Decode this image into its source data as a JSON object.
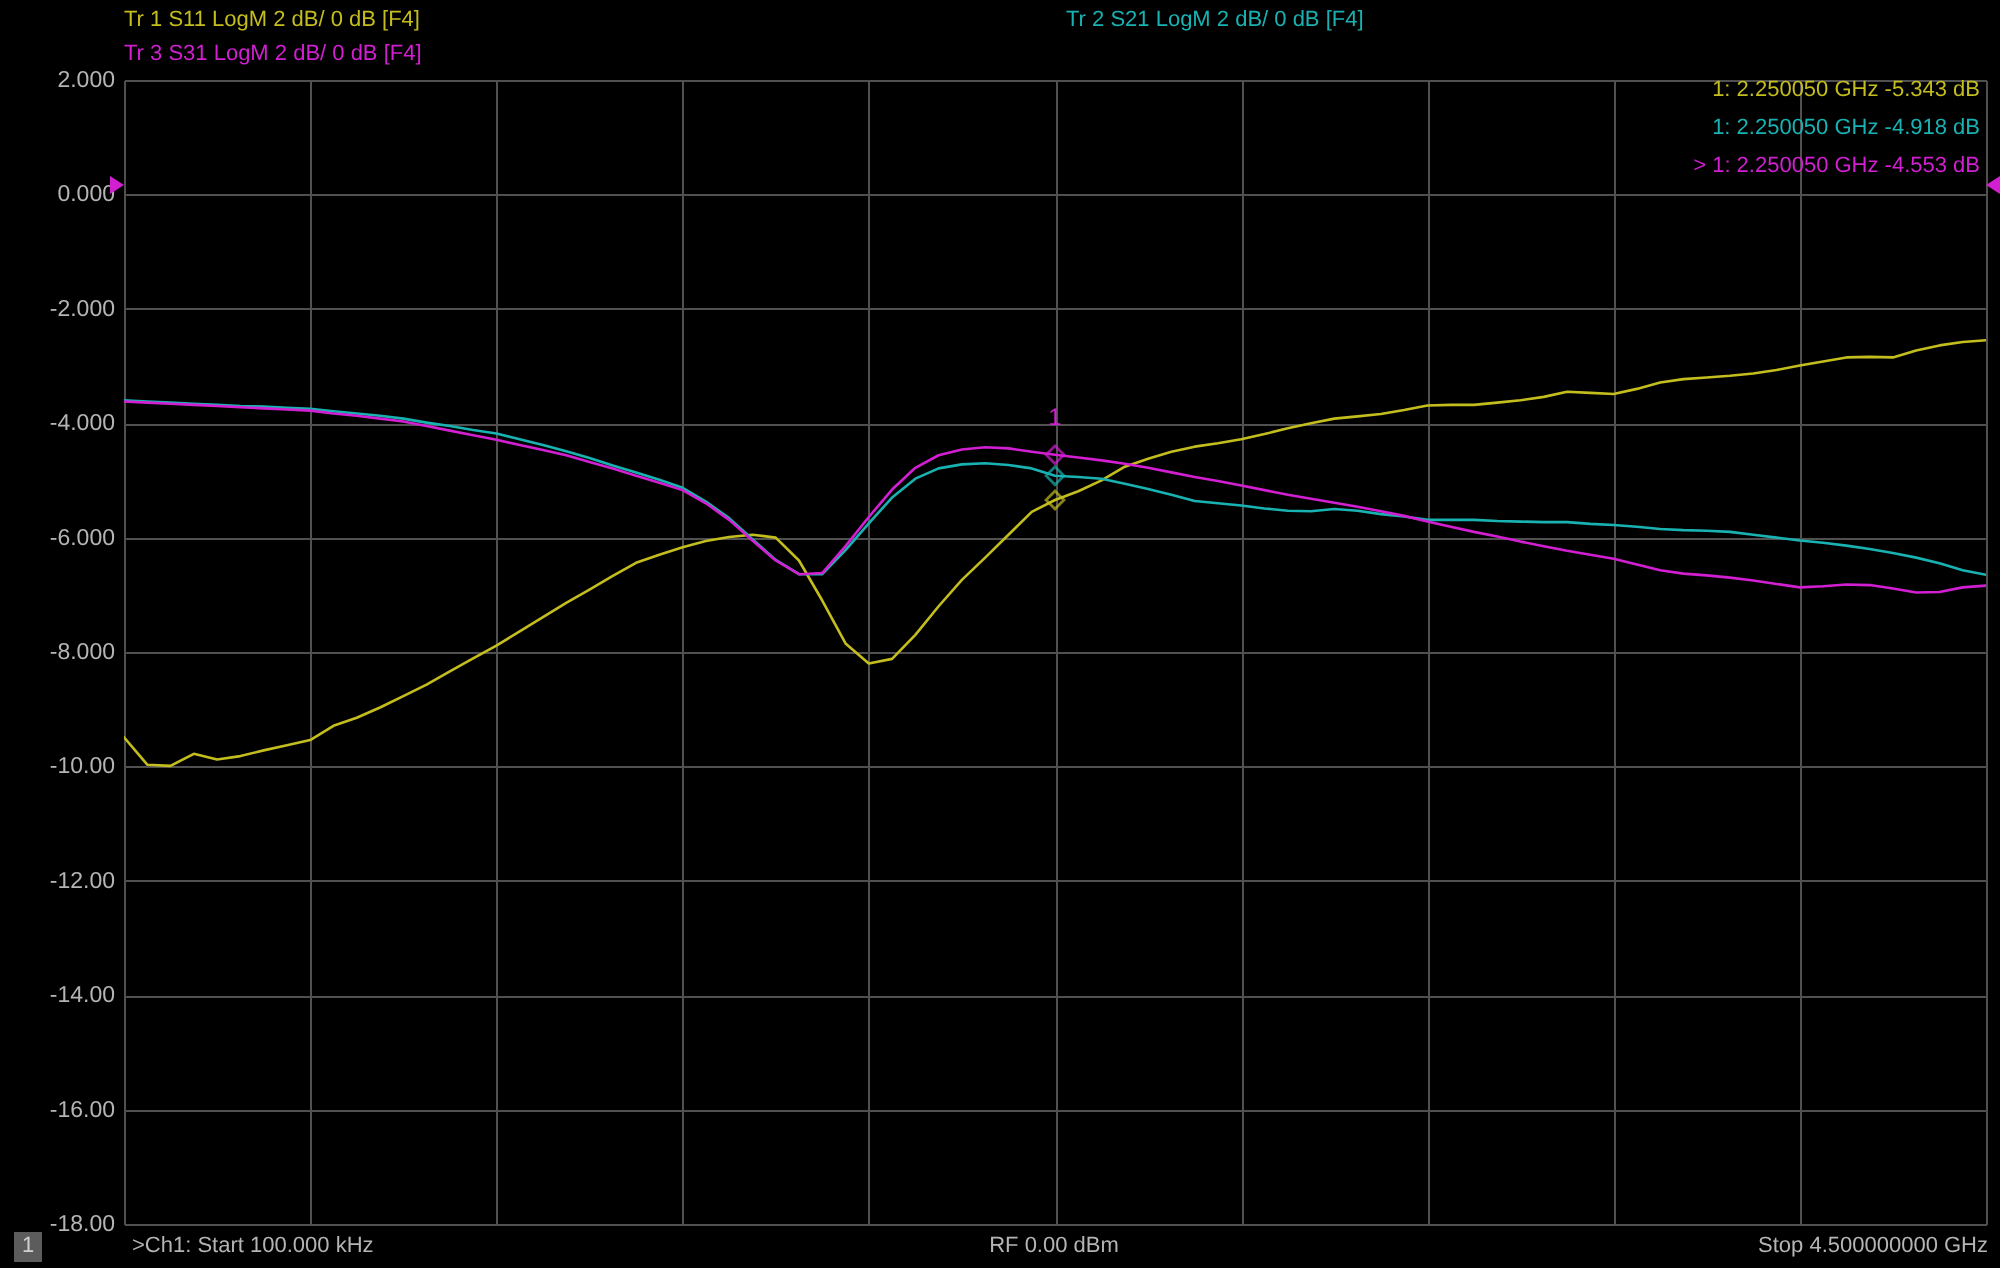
{
  "chart_data": {
    "type": "line",
    "categories": [
      null,
      null,
      null,
      null,
      null,
      null,
      null,
      null,
      null,
      null,
      null,
      null,
      null,
      null,
      null,
      null,
      null,
      null,
      null,
      null,
      null,
      null,
      null,
      null,
      null,
      null,
      null,
      null,
      null,
      null,
      null,
      null,
      null,
      null,
      null,
      null,
      null,
      null,
      null,
      null,
      null,
      null,
      null,
      null,
      null,
      null,
      null,
      null,
      null,
      null,
      null,
      null,
      null,
      null,
      null,
      null,
      null,
      null,
      null,
      null,
      null,
      null,
      null,
      null,
      null,
      null,
      null,
      null,
      null,
      null,
      null,
      null,
      null,
      null,
      null,
      null,
      null,
      null,
      null,
      null,
      null
    ],
    "ylim": [
      -18,
      2
    ],
    "yticks": [
      {
        "value": 2,
        "label": "2.000"
      },
      {
        "value": 0,
        "label": "0.000"
      },
      {
        "value": -2,
        "label": "-2.000"
      },
      {
        "value": -4,
        "label": "-4.000"
      },
      {
        "value": -6,
        "label": "-6.000"
      },
      {
        "value": -8,
        "label": "-8.000"
      },
      {
        "value": -10,
        "label": "-10.00"
      },
      {
        "value": -12,
        "label": "-12.00"
      },
      {
        "value": -14,
        "label": "-14.00"
      },
      {
        "value": -16,
        "label": "-16.00"
      },
      {
        "value": -18,
        "label": "-18.00"
      }
    ],
    "tick_labels": "y",
    "grid": true,
    "series": [
      {
        "name": "Tr 1 S11 LogM 2 dB/ 0 dB [F4]",
        "color": "#c4bd1e",
        "values": [
          -9.49,
          -9.97,
          -9.99,
          -9.78,
          -9.88,
          -9.82,
          -9.72,
          -9.63,
          -9.54,
          -9.29,
          -9.15,
          -8.97,
          -8.77,
          -8.57,
          -8.34,
          -8.11,
          -7.89,
          -7.64,
          -7.39,
          -7.14,
          -6.91,
          -6.67,
          -6.44,
          -6.3,
          -6.17,
          -6.06,
          -5.99,
          -5.95,
          -6.0,
          -6.4,
          -7.1,
          -7.85,
          -8.2,
          -8.12,
          -7.7,
          -7.2,
          -6.74,
          -6.35,
          -5.95,
          -5.55,
          -5.343,
          -5.19,
          -5.0,
          -4.76,
          -4.62,
          -4.5,
          -4.41,
          -4.35,
          -4.28,
          -4.19,
          -4.09,
          -4.0,
          -3.92,
          -3.88,
          -3.84,
          -3.77,
          -3.69,
          -3.68,
          -3.68,
          -3.64,
          -3.6,
          -3.54,
          -3.45,
          -3.47,
          -3.49,
          -3.4,
          -3.29,
          -3.23,
          -3.2,
          -3.17,
          -3.13,
          -3.07,
          -2.99,
          -2.92,
          -2.85,
          -2.84,
          -2.85,
          -2.73,
          -2.64,
          -2.58,
          -2.55
        ]
      },
      {
        "name": "Tr 2 S21 LogM 2 dB/ 0 dB [F4]",
        "color": "#19b2b2",
        "values": [
          -3.6,
          -3.62,
          -3.64,
          -3.66,
          -3.68,
          -3.7,
          -3.71,
          -3.73,
          -3.75,
          -3.79,
          -3.83,
          -3.87,
          -3.92,
          -3.99,
          -4.05,
          -4.12,
          -4.18,
          -4.28,
          -4.38,
          -4.49,
          -4.61,
          -4.74,
          -4.86,
          -4.99,
          -5.13,
          -5.37,
          -5.66,
          -6.03,
          -6.39,
          -6.64,
          -6.64,
          -6.22,
          -5.75,
          -5.3,
          -4.97,
          -4.79,
          -4.72,
          -4.7,
          -4.73,
          -4.79,
          -4.918,
          -4.94,
          -4.97,
          -5.06,
          -5.15,
          -5.25,
          -5.36,
          -5.4,
          -5.44,
          -5.49,
          -5.53,
          -5.54,
          -5.5,
          -5.53,
          -5.59,
          -5.63,
          -5.69,
          -5.69,
          -5.69,
          -5.71,
          -5.72,
          -5.73,
          -5.73,
          -5.76,
          -5.78,
          -5.81,
          -5.85,
          -5.87,
          -5.88,
          -5.9,
          -5.95,
          -6.0,
          -6.05,
          -6.09,
          -6.14,
          -6.2,
          -6.27,
          -6.35,
          -6.45,
          -6.57,
          -6.65
        ]
      },
      {
        "name": "Tr 3 S31 LogM 2 dB/ 0 dB [F4]",
        "color": "#d21fd2",
        "values": [
          -3.62,
          -3.64,
          -3.66,
          -3.68,
          -3.7,
          -3.72,
          -3.74,
          -3.76,
          -3.78,
          -3.83,
          -3.87,
          -3.92,
          -3.97,
          -4.05,
          -4.13,
          -4.21,
          -4.29,
          -4.38,
          -4.47,
          -4.56,
          -4.68,
          -4.79,
          -4.92,
          -5.04,
          -5.17,
          -5.4,
          -5.69,
          -6.05,
          -6.4,
          -6.64,
          -6.62,
          -6.15,
          -5.64,
          -5.16,
          -4.78,
          -4.56,
          -4.46,
          -4.42,
          -4.44,
          -4.5,
          -4.553,
          -4.6,
          -4.65,
          -4.71,
          -4.78,
          -4.86,
          -4.94,
          -5.01,
          -5.09,
          -5.17,
          -5.25,
          -5.32,
          -5.39,
          -5.46,
          -5.54,
          -5.62,
          -5.72,
          -5.81,
          -5.9,
          -5.98,
          -6.07,
          -6.15,
          -6.23,
          -6.3,
          -6.37,
          -6.47,
          -6.57,
          -6.63,
          -6.66,
          -6.7,
          -6.75,
          -6.81,
          -6.87,
          -6.85,
          -6.82,
          -6.83,
          -6.89,
          -6.96,
          -6.95,
          -6.87,
          -6.84
        ]
      },
      {
        "type": "scatter",
        "marker": "diamond",
        "color": "#c4bd1e",
        "values": [
          null,
          null,
          null,
          null,
          null,
          null,
          null,
          null,
          null,
          null,
          null,
          null,
          null,
          null,
          null,
          null,
          null,
          null,
          null,
          null,
          null,
          null,
          null,
          null,
          null,
          null,
          null,
          null,
          null,
          null,
          null,
          null,
          null,
          null,
          null,
          null,
          null,
          null,
          null,
          null,
          -5.343,
          null,
          null,
          null,
          null,
          null,
          null,
          null,
          null,
          null,
          null,
          null,
          null,
          null,
          null,
          null,
          null,
          null,
          null,
          null,
          null,
          null,
          null,
          null,
          null,
          null,
          null,
          null,
          null,
          null,
          null,
          null,
          null,
          null,
          null,
          null,
          null,
          null,
          null,
          null,
          null
        ]
      },
      {
        "type": "scatter",
        "marker": "diamond",
        "color": "#19b2b2",
        "values": [
          null,
          null,
          null,
          null,
          null,
          null,
          null,
          null,
          null,
          null,
          null,
          null,
          null,
          null,
          null,
          null,
          null,
          null,
          null,
          null,
          null,
          null,
          null,
          null,
          null,
          null,
          null,
          null,
          null,
          null,
          null,
          null,
          null,
          null,
          null,
          null,
          null,
          null,
          null,
          null,
          -4.918,
          null,
          null,
          null,
          null,
          null,
          null,
          null,
          null,
          null,
          null,
          null,
          null,
          null,
          null,
          null,
          null,
          null,
          null,
          null,
          null,
          null,
          null,
          null,
          null,
          null,
          null,
          null,
          null,
          null,
          null,
          null,
          null,
          null,
          null,
          null,
          null,
          null,
          null,
          null,
          null
        ]
      },
      {
        "type": "scatter",
        "marker": "diamond",
        "color": "#d21fd2",
        "values": [
          null,
          null,
          null,
          null,
          null,
          null,
          null,
          null,
          null,
          null,
          null,
          null,
          null,
          null,
          null,
          null,
          null,
          null,
          null,
          null,
          null,
          null,
          null,
          null,
          null,
          null,
          null,
          null,
          null,
          null,
          null,
          null,
          null,
          null,
          null,
          null,
          null,
          null,
          null,
          null,
          -4.553,
          null,
          null,
          null,
          null,
          null,
          null,
          null,
          null,
          null,
          null,
          null,
          null,
          null,
          null,
          null,
          null,
          null,
          null,
          null,
          null,
          null,
          null,
          null,
          null,
          null,
          null,
          null,
          null,
          null,
          null,
          null,
          null,
          null,
          null,
          null,
          null,
          null,
          null,
          null,
          null
        ]
      }
    ],
    "annotations": [
      "1: 2.250050 GHz -5.343 dB",
      "1: 2.250050 GHz -4.918 dB",
      "> 1: 2.250050 GHz -4.553 dB",
      {
        "text": "1",
        "y": -4.553
      },
      ">Ch1: Start 100.000 kHz",
      "RF 0.00 dBm",
      "Stop 4.500000000 GHz",
      "1"
    ]
  }
}
